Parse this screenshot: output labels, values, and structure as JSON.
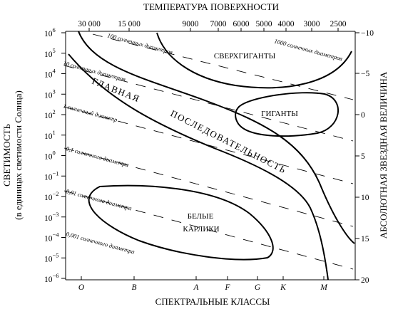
{
  "top_axis": {
    "title": "ТЕМПЕРАТУРА ПОВЕРХНОСТИ",
    "ticks": [
      "30 000",
      "15 000",
      "9000",
      "7000",
      "6000",
      "5000",
      "4000",
      "3000",
      "2500"
    ]
  },
  "bottom_axis": {
    "title": "СПЕКТРАЛЬНЫЕ КЛАССЫ",
    "ticks": [
      "O",
      "B",
      "A",
      "F",
      "G",
      "K",
      "M"
    ]
  },
  "left_axis": {
    "title_line1": "СВЕТИМОСТЬ",
    "title_line2": "(в единицах светимости Солнца)",
    "ticks": [
      {
        "base": "10",
        "exp": "6"
      },
      {
        "base": "10",
        "exp": "5"
      },
      {
        "base": "10",
        "exp": "4"
      },
      {
        "base": "10",
        "exp": "3"
      },
      {
        "base": "10",
        "exp": "2"
      },
      {
        "base": "10",
        "exp": "1"
      },
      {
        "base": "10",
        "exp": "0"
      },
      {
        "base": "10",
        "exp": "−1"
      },
      {
        "base": "10",
        "exp": "−2"
      },
      {
        "base": "10",
        "exp": "−3"
      },
      {
        "base": "10",
        "exp": "−4"
      },
      {
        "base": "10",
        "exp": "−5"
      },
      {
        "base": "10",
        "exp": "−6"
      }
    ]
  },
  "right_axis": {
    "title": "АБСОЛЮТНАЯ ЗВЕЗДНАЯ ВЕЛИЧИНА",
    "ticks": [
      "−10",
      "−5",
      "0",
      "5",
      "10",
      "15",
      "20"
    ]
  },
  "regions": {
    "supergiants": "СВЕРХГИГАНТЫ",
    "giants": "ГИГАНТЫ",
    "white_dwarfs_line1": "БЕЛЫЕ",
    "white_dwarfs_line2": "КАРЛИКИ"
  },
  "main_sequence": {
    "word1": "ГЛАВНАЯ",
    "word2": "ПОСЛЕДОВАТЕЛЬНОСТЬ"
  },
  "diameter_labels": [
    "100 солнечных диаметров",
    "1000 солнечных диаметров",
    "10 солнечных диаметров",
    "1 солнечный диаметр",
    "0,1 солнечного диаметра",
    "0,01 солнечного диаметра",
    "0,001 солнечного диаметра"
  ]
}
